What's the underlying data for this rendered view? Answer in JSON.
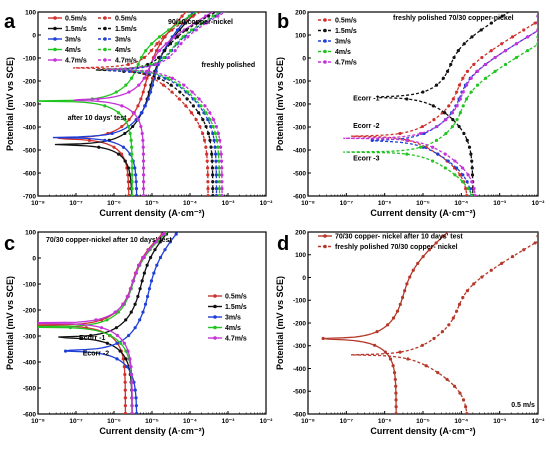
{
  "chart_data": [
    {
      "panel": "a",
      "type": "line",
      "title": "90/10 copper-nickel",
      "xlabel": "Current density (A·cm⁻²)",
      "ylabel": "Potential (mV vs SCE)",
      "xscale": "log",
      "xlim": [
        1e-08,
        0.01
      ],
      "ylim": [
        -700,
        100
      ],
      "xticks": [
        "10⁻⁸",
        "10⁻⁷",
        "10⁻⁶",
        "10⁻⁵",
        "10⁻⁴",
        "10⁻³",
        "10⁻²"
      ],
      "yticks": [
        "-700",
        "-600",
        "-500",
        "-400",
        "-300",
        "-200",
        "-100",
        "0",
        "100"
      ],
      "legend_position": "top-left",
      "annotations": [
        {
          "text": "freshly polished",
          "x": 0.0002,
          "y": -140
        },
        {
          "text": "after 10 days' test",
          "x": 6e-08,
          "y": -370
        }
      ],
      "series": [
        {
          "name": "0.5m/s",
          "color": "#d0312d",
          "dashed": false,
          "ecorr": -440,
          "icorr": 1.5e-06,
          "ba": 0.16,
          "bc": 0.09,
          "ia": 7e-06,
          "ic": 2.5e-06,
          "imax": 0.02
        },
        {
          "name": "1.5m/s",
          "color": "#111111",
          "dashed": false,
          "ecorr": -465,
          "icorr": 2e-06,
          "ba": 0.16,
          "bc": 0.09,
          "ia": 9e-06,
          "ic": 3e-06,
          "imax": 0.02
        },
        {
          "name": "3m/s",
          "color": "#1f3fd6",
          "dashed": false,
          "ecorr": -435,
          "icorr": 2.5e-06,
          "ba": 0.16,
          "bc": 0.09,
          "ia": 1.1e-05,
          "ic": 4e-06,
          "imax": 0.02
        },
        {
          "name": "4m/s",
          "color": "#22c422",
          "dashed": false,
          "ecorr": -285,
          "icorr": 1e-06,
          "ba": 0.1,
          "bc": 0.1,
          "ia": 4e-06,
          "ic": 3e-06,
          "imax": 0.02
        },
        {
          "name": "4.7m/s",
          "color": "#c433d8",
          "dashed": false,
          "ecorr": -280,
          "icorr": 3e-06,
          "ba": 0.1,
          "bc": 0.1,
          "ia": 8e-06,
          "ic": 6e-06,
          "imax": 0.02
        },
        {
          "name": "0.5m/s",
          "color": "#d0312d",
          "dashed": true,
          "ecorr": -165,
          "icorr": 1e-05,
          "ba": 0.09,
          "bc": 0.14,
          "ia": 1e-05,
          "ic": 0.0003,
          "imax": 0.01
        },
        {
          "name": "1.5m/s",
          "color": "#111111",
          "dashed": true,
          "ecorr": -175,
          "icorr": 2e-05,
          "ba": 0.09,
          "bc": 0.14,
          "ia": 2e-05,
          "ic": 0.0004,
          "imax": 0.01
        },
        {
          "name": "3m/s",
          "color": "#1f3fd6",
          "dashed": true,
          "ecorr": -175,
          "icorr": 3e-05,
          "ba": 0.09,
          "bc": 0.14,
          "ia": 3e-05,
          "ic": 0.0005,
          "imax": 0.01
        },
        {
          "name": "4m/s",
          "color": "#22c422",
          "dashed": true,
          "ecorr": -170,
          "icorr": 3e-05,
          "ba": 0.09,
          "bc": 0.14,
          "ia": 3e-05,
          "ic": 0.0006,
          "imax": 0.01
        },
        {
          "name": "4.7m/s",
          "color": "#c433d8",
          "dashed": true,
          "ecorr": -170,
          "icorr": 4e-05,
          "ba": 0.09,
          "bc": 0.14,
          "ia": 4e-05,
          "ic": 0.0007,
          "imax": 0.01
        }
      ]
    },
    {
      "panel": "b",
      "type": "line",
      "title": "freshly polished 70/30 copper-nickel",
      "xlabel": "Current density (A·cm⁻²)",
      "ylabel": "Potential (mV vs SCE)",
      "xscale": "log",
      "xlim": [
        1e-08,
        0.01
      ],
      "ylim": [
        -600,
        200
      ],
      "xticks": [
        "10⁻⁸",
        "10⁻⁷",
        "10⁻⁶",
        "10⁻⁵",
        "10⁻⁴",
        "10⁻³",
        "10⁻²"
      ],
      "yticks": [
        "-600",
        "-500",
        "-400",
        "-300",
        "-200",
        "-100",
        "0",
        "100",
        "200"
      ],
      "legend_position": "top-left",
      "annotations": [
        {
          "text": "Ecorr -1",
          "x": 1.5e-07,
          "y": -185
        },
        {
          "text": "Ecorr -2",
          "x": 1.5e-07,
          "y": -305
        },
        {
          "text": "Ecorr -3",
          "x": 1.5e-07,
          "y": -445
        }
      ],
      "series": [
        {
          "name": "0.5m/s",
          "color": "#d0312d",
          "dashed": true,
          "ecorr": -340,
          "icorr": 5e-06,
          "ba": 0.1,
          "bc": 0.1,
          "ia": 8e-05,
          "ic": 0.00015,
          "imax": 0.01
        },
        {
          "name": "1.5m/s",
          "color": "#111111",
          "dashed": true,
          "ecorr": -175,
          "icorr": 1.5e-05,
          "ba": 0.1,
          "bc": 0.12,
          "ia": 5e-05,
          "ic": 0.0002,
          "imax": 0.01
        },
        {
          "name": "3m/s",
          "color": "#1f3fd6",
          "dashed": true,
          "ecorr": -360,
          "icorr": 8e-06,
          "ba": 0.1,
          "bc": 0.1,
          "ia": 9e-05,
          "ic": 0.0002,
          "imax": 0.01
        },
        {
          "name": "4m/s",
          "color": "#22c422",
          "dashed": true,
          "ecorr": -410,
          "icorr": 1e-05,
          "ba": 0.1,
          "bc": 0.1,
          "ia": 0.0001,
          "ic": 0.00025,
          "imax": 0.01
        },
        {
          "name": "4.7m/s",
          "color": "#c433d8",
          "dashed": true,
          "ecorr": -350,
          "icorr": 1e-05,
          "ba": 0.1,
          "bc": 0.1,
          "ia": 0.0001,
          "ic": 0.00025,
          "imax": 0.01
        }
      ]
    },
    {
      "panel": "c",
      "type": "line",
      "title": "70/30 copper-nickel after 10 days' test",
      "xlabel": "Current density (A·cm⁻²)",
      "ylabel": "Potential (mV vs SCE)",
      "xscale": "log",
      "xlim": [
        1e-08,
        0.01
      ],
      "ylim": [
        -600,
        100
      ],
      "xticks": [
        "10⁻⁸",
        "10⁻⁷",
        "10⁻⁶",
        "10⁻⁵",
        "10⁻⁴",
        "10⁻³",
        "10⁻²"
      ],
      "yticks": [
        "-600",
        "-500",
        "-400",
        "-300",
        "-200",
        "-100",
        "0",
        "100"
      ],
      "legend_position": "center-right",
      "annotations": [
        {
          "text": "Ecorr -1",
          "x": 1.2e-07,
          "y": -315
        },
        {
          "text": "Ecorr -2",
          "x": 1.5e-07,
          "y": -375
        }
      ],
      "series": [
        {
          "name": "0.5m/s",
          "color": "#d0312d",
          "dashed": false,
          "ecorr": -255,
          "icorr": 1e-06,
          "ba": 0.12,
          "bc": 0.1,
          "ia": 3e-06,
          "ic": 2e-06,
          "imax": 0.001
        },
        {
          "name": "1.5m/s",
          "color": "#111111",
          "dashed": false,
          "ecorr": -300,
          "icorr": 1.5e-06,
          "ba": 0.14,
          "bc": 0.1,
          "ia": 5e-06,
          "ic": 3e-06,
          "imax": 0.001
        },
        {
          "name": "3m/s",
          "color": "#1f3fd6",
          "dashed": false,
          "ecorr": -350,
          "icorr": 2e-06,
          "ba": 0.15,
          "bc": 0.1,
          "ia": 8e-06,
          "ic": 4e-06,
          "imax": 0.004
        },
        {
          "name": "4m/s",
          "color": "#22c422",
          "dashed": false,
          "ecorr": -265,
          "icorr": 1e-06,
          "ba": 0.12,
          "bc": 0.1,
          "ia": 3e-06,
          "ic": 3e-06,
          "imax": 0.002
        },
        {
          "name": "4.7m/s",
          "color": "#c433d8",
          "dashed": false,
          "ecorr": -250,
          "icorr": 1.2e-06,
          "ba": 0.12,
          "bc": 0.1,
          "ia": 3e-06,
          "ic": 3e-06,
          "imax": 0.004
        }
      ]
    },
    {
      "panel": "d",
      "type": "line",
      "title": "",
      "xlabel": "Current density (A·cm⁻²)",
      "ylabel": "Potential (mV vs SCE)",
      "xscale": "log",
      "xlim": [
        1e-08,
        0.01
      ],
      "ylim": [
        -600,
        200
      ],
      "xticks": [
        "10⁻⁸",
        "10⁻⁷",
        "10⁻⁶",
        "10⁻⁵",
        "10⁻⁴",
        "10⁻³",
        "10⁻²"
      ],
      "yticks": [
        "-600",
        "-500",
        "-400",
        "-300",
        "-200",
        "-100",
        "0",
        "100",
        "200"
      ],
      "legend_position": "top-left",
      "annotations": [
        {
          "text": "0.5 m/s",
          "x": 0.002,
          "y": -570
        }
      ],
      "series": [
        {
          "name": "70/30 copper- nickel after 10 days' test",
          "color": "#b5382a",
          "dashed": false,
          "ecorr": -265,
          "icorr": 1e-06,
          "ba": 0.14,
          "bc": 0.1,
          "ia": 3e-06,
          "ic": 2e-06,
          "imax": 0.006
        },
        {
          "name": "freshly polished 70/30 copper- nickel",
          "color": "#b5382a",
          "dashed": true,
          "ecorr": -340,
          "icorr": 5e-06,
          "ba": 0.1,
          "bc": 0.1,
          "ia": 8e-05,
          "ic": 0.00015,
          "imax": 0.01
        }
      ]
    }
  ]
}
